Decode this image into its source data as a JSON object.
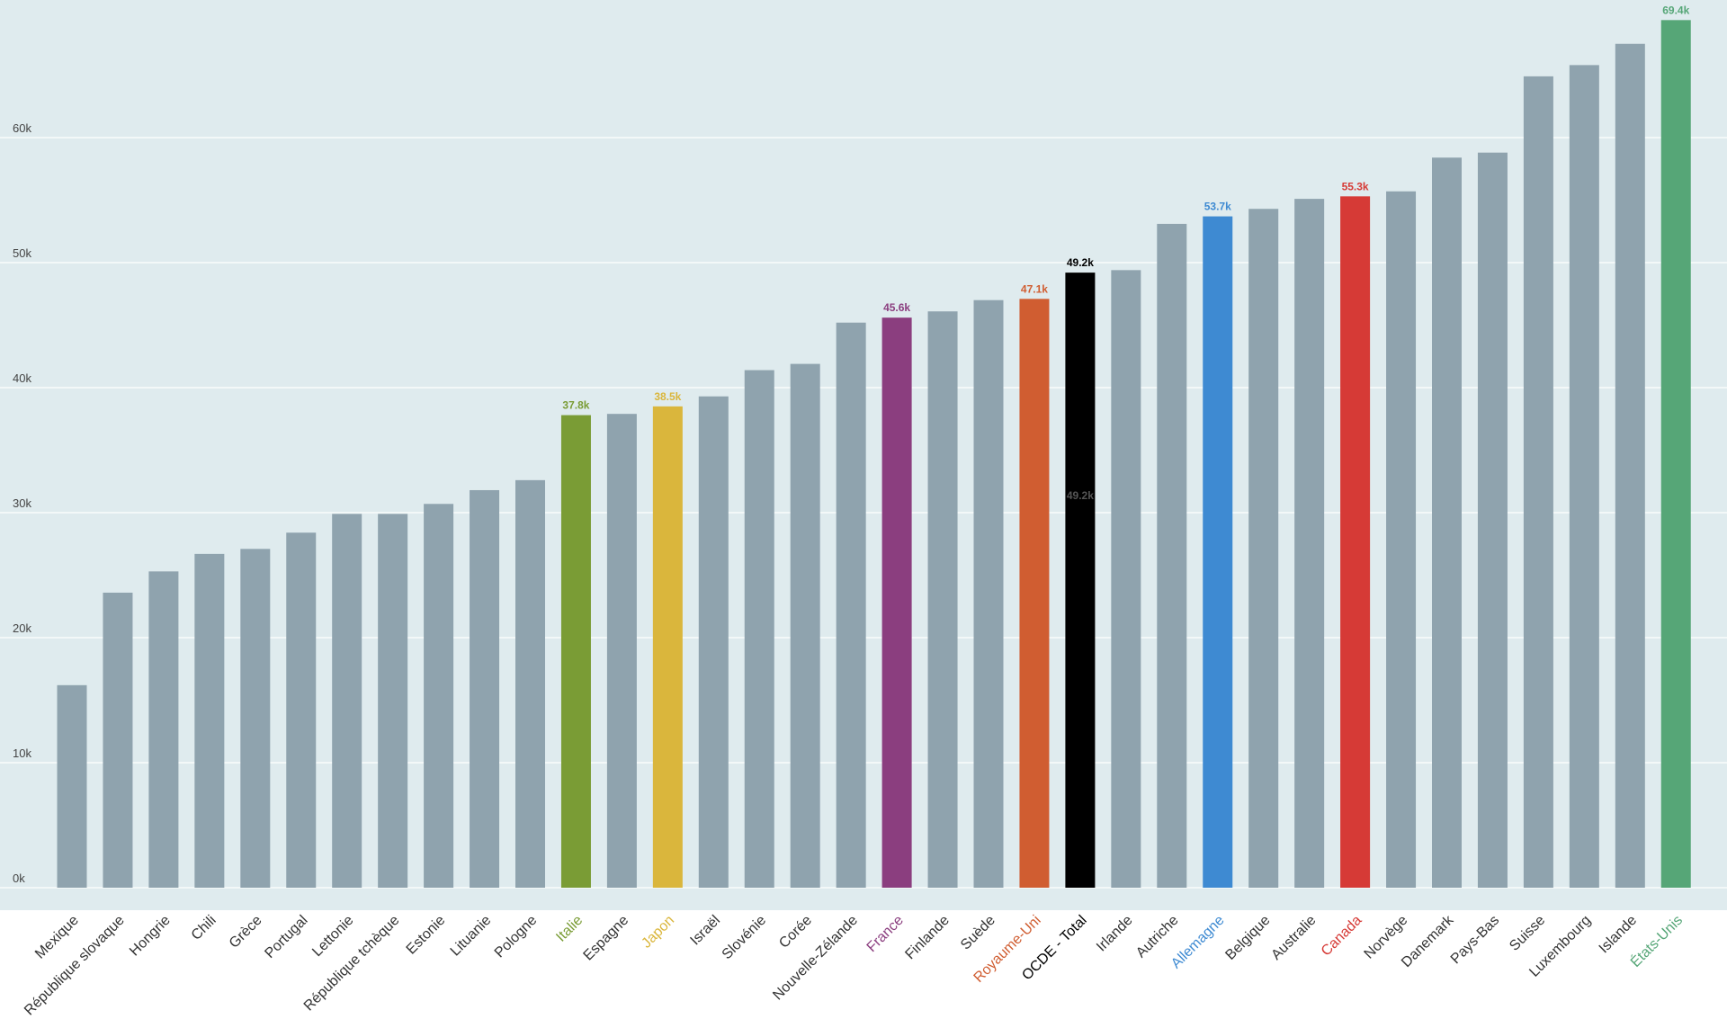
{
  "chart_data": {
    "type": "bar",
    "title": "",
    "xlabel": "",
    "ylabel": "",
    "ylim": [
      0,
      70000
    ],
    "yticks": [
      0,
      10000,
      20000,
      30000,
      40000,
      50000,
      60000
    ],
    "ytick_labels": [
      "0k",
      "10k",
      "20k",
      "30k",
      "40k",
      "50k",
      "60k"
    ],
    "grid": true,
    "categories": [
      "Mexique",
      "République slovaque",
      "Hongrie",
      "Chili",
      "Grèce",
      "Portugal",
      "Lettonie",
      "République tchèque",
      "Estonie",
      "Lituanie",
      "Pologne",
      "Italie",
      "Espagne",
      "Japon",
      "Israël",
      "Slovénie",
      "Corée",
      "Nouvelle-Zélande",
      "France",
      "Finlande",
      "Suède",
      "Royaume-Uni",
      "OCDE - Total",
      "Irlande",
      "Autriche",
      "Allemagne",
      "Belgique",
      "Australie",
      "Canada",
      "Norvège",
      "Danemark",
      "Pays-Bas",
      "Suisse",
      "Luxembourg",
      "Islande",
      "États-Unis"
    ],
    "values": [
      16200,
      23600,
      25300,
      26700,
      27100,
      28400,
      29900,
      29900,
      30700,
      31800,
      32600,
      37800,
      37900,
      38500,
      39300,
      41400,
      41900,
      45200,
      45600,
      46100,
      47000,
      47100,
      49200,
      49400,
      53100,
      53700,
      54300,
      55100,
      55300,
      55700,
      58400,
      58800,
      64900,
      65800,
      67500,
      69400
    ],
    "highlights": [
      {
        "category": "Italie",
        "label": "37.8k",
        "color": "#7a9c35"
      },
      {
        "category": "Japon",
        "label": "38.5k",
        "color": "#dab63c"
      },
      {
        "category": "France",
        "label": "45.6k",
        "color": "#8b3e7f"
      },
      {
        "category": "Royaume-Uni",
        "label": "47.1k",
        "color": "#d05d31"
      },
      {
        "category": "OCDE - Total",
        "label": "49.2k",
        "color": "#000000"
      },
      {
        "category": "Allemagne",
        "label": "53.7k",
        "color": "#3e8ad2"
      },
      {
        "category": "Canada",
        "label": "55.3k",
        "color": "#d63a36"
      },
      {
        "category": "États-Unis",
        "label": "69.4k",
        "color": "#56a677"
      }
    ],
    "inner_label": {
      "category": "OCDE - Total",
      "text": "49.2k"
    },
    "colors": {
      "default_bar": "#8fa3ae",
      "plot_background": "#dfebee",
      "gridline": "#ffffff",
      "tick_text": "#444444",
      "category_text": "#333333"
    }
  }
}
